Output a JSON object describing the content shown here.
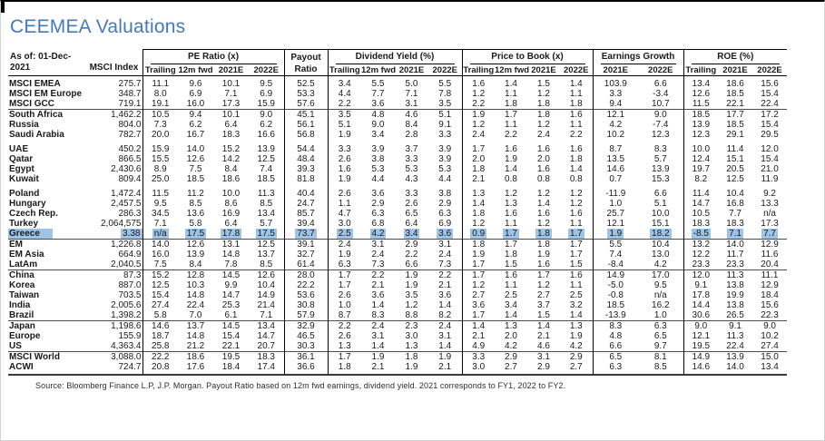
{
  "title": "CEEMEA Valuations",
  "colors": {
    "title_blue": "#4679b8",
    "row_highlight": "#9dc3e6"
  },
  "table": {
    "corner": {
      "as_of_line1": "As of: 01-Dec-",
      "as_of_line2": "2021",
      "index_header": "MSCI Index"
    },
    "groups": [
      {
        "label": "PE Ratio (x)",
        "cols": [
          "Trailing",
          "12m fwd",
          "2021E",
          "2022E"
        ]
      },
      {
        "label_lines": [
          "Payout",
          "Ratio"
        ]
      },
      {
        "label": "Dividend Yield (%)",
        "cols": [
          "Trailing",
          "12m fwd",
          "2021E",
          "2022E"
        ]
      },
      {
        "label": "Price to Book (x)",
        "cols": [
          "Trailing",
          "12m fwd",
          "2021E",
          "2022E"
        ]
      },
      {
        "label": "Earnings Growth",
        "cols": [
          "2021E",
          "2022E"
        ]
      },
      {
        "label": "ROE (%)",
        "cols": [
          "Trailing",
          "2021E",
          "2022E"
        ]
      }
    ],
    "rows": [
      {
        "name": "MSCI EMEA",
        "index": "275.7",
        "values": [
          "11.1",
          "9.6",
          "10.1",
          "9.5",
          "52.5",
          "3.4",
          "5.5",
          "5.0",
          "5.5",
          "1.6",
          "1.4",
          "1.5",
          "1.4",
          "103.9",
          "6.6",
          "13.4",
          "18.6",
          "15.6"
        ]
      },
      {
        "name": "MSCI EM Europe",
        "index": "348.7",
        "values": [
          "8.0",
          "6.9",
          "7.1",
          "6.9",
          "53.3",
          "4.4",
          "7.7",
          "7.1",
          "7.8",
          "1.2",
          "1.1",
          "1.2",
          "1.1",
          "3.3",
          "-3.4",
          "12.6",
          "18.5",
          "15.4"
        ]
      },
      {
        "name": "MSCI GCC",
        "index": "719.1",
        "values": [
          "19.1",
          "16.0",
          "17.3",
          "15.9",
          "57.6",
          "2.2",
          "3.6",
          "3.1",
          "3.5",
          "2.2",
          "1.8",
          "1.8",
          "1.8",
          "9.4",
          "10.7",
          "11.5",
          "22.1",
          "22.4"
        ]
      },
      {
        "name": "South Africa",
        "index": "1,462.2",
        "rule_above": true,
        "values": [
          "10.5",
          "9.4",
          "10.1",
          "9.0",
          "45.1",
          "3.5",
          "4.8",
          "4.6",
          "5.1",
          "1.9",
          "1.7",
          "1.8",
          "1.6",
          "12.1",
          "9.0",
          "18.5",
          "17.7",
          "17.2"
        ]
      },
      {
        "name": "Russia",
        "index": "804.0",
        "values": [
          "7.3",
          "6.2",
          "6.4",
          "6.2",
          "56.1",
          "5.1",
          "9.0",
          "8.4",
          "9.1",
          "1.2",
          "1.1",
          "1.2",
          "1.1",
          "4.2",
          "-7.4",
          "13.9",
          "18.5",
          "15.4"
        ]
      },
      {
        "name": "Saudi Arabia",
        "index": "782.7",
        "values": [
          "20.0",
          "16.7",
          "18.3",
          "16.6",
          "56.8",
          "1.9",
          "3.4",
          "2.8",
          "3.3",
          "2.4",
          "2.2",
          "2.4",
          "2.2",
          "10.2",
          "12.3",
          "12.3",
          "29.1",
          "29.5"
        ]
      },
      {
        "name": "UAE",
        "index": "450.2",
        "gap_above": true,
        "values": [
          "15.9",
          "14.0",
          "15.2",
          "13.9",
          "54.4",
          "3.3",
          "3.9",
          "3.7",
          "3.9",
          "1.7",
          "1.6",
          "1.6",
          "1.6",
          "8.7",
          "8.3",
          "10.0",
          "11.4",
          "12.0"
        ]
      },
      {
        "name": "Qatar",
        "index": "866.5",
        "values": [
          "15.5",
          "12.6",
          "14.2",
          "12.5",
          "48.4",
          "2.6",
          "3.8",
          "3.3",
          "3.9",
          "2.0",
          "1.9",
          "2.0",
          "1.8",
          "13.5",
          "5.7",
          "12.4",
          "15.1",
          "15.4"
        ]
      },
      {
        "name": "Egypt",
        "index": "2,430.6",
        "values": [
          "8.9",
          "7.5",
          "8.4",
          "7.4",
          "39.3",
          "1.6",
          "5.3",
          "5.3",
          "5.3",
          "1.8",
          "1.4",
          "1.6",
          "1.4",
          "14.6",
          "13.9",
          "19.7",
          "20.5",
          "21.0"
        ]
      },
      {
        "name": "Kuwait",
        "index": "809.4",
        "values": [
          "25.0",
          "18.5",
          "18.6",
          "18.5",
          "81.8",
          "1.9",
          "4.4",
          "4.3",
          "4.4",
          "2.1",
          "0.8",
          "0.8",
          "0.8",
          "0.7",
          "15.3",
          "8.2",
          "12.5",
          "11.9"
        ]
      },
      {
        "name": "Poland",
        "index": "1,472.4",
        "gap_above": true,
        "values": [
          "11.5",
          "11.2",
          "10.0",
          "11.3",
          "40.4",
          "2.6",
          "3.6",
          "3.3",
          "3.8",
          "1.3",
          "1.2",
          "1.2",
          "1.2",
          "-11.9",
          "6.6",
          "11.4",
          "10.4",
          "9.2"
        ]
      },
      {
        "name": "Hungary",
        "index": "2,457.5",
        "values": [
          "9.5",
          "8.5",
          "8.6",
          "8.5",
          "24.7",
          "1.1",
          "2.9",
          "2.6",
          "2.9",
          "1.4",
          "1.3",
          "1.4",
          "1.2",
          "1.0",
          "5.1",
          "14.7",
          "16.8",
          "13.3"
        ]
      },
      {
        "name": "Czech Rep.",
        "index": "286.3",
        "values": [
          "34.5",
          "13.6",
          "16.9",
          "13.4",
          "85.7",
          "4.7",
          "6.3",
          "6.5",
          "6.3",
          "1.8",
          "1.6",
          "1.6",
          "1.6",
          "25.7",
          "10.0",
          "10.5",
          "7.7",
          "n/a"
        ]
      },
      {
        "name": "Turkey",
        "index": "2,064,575",
        "values": [
          "7.1",
          "5.8",
          "6.4",
          "5.7",
          "39.4",
          "3.0",
          "6.8",
          "6.4",
          "6.9",
          "1.2",
          "1.1",
          "1.2",
          "1.1",
          "12.1",
          "15.1",
          "18.3",
          "18.3",
          "17.3"
        ]
      },
      {
        "name": "Greece",
        "index": "3.38",
        "highlight": true,
        "values": [
          "n/a",
          "17.5",
          "17.8",
          "17.5",
          "73.7",
          "2.5",
          "4.2",
          "3.4",
          "3.6",
          "0.9",
          "1.7",
          "1.8",
          "1.7",
          "1.9",
          "18.2",
          "-8.5",
          "7.1",
          "7.7"
        ]
      },
      {
        "name": "EM",
        "index": "1,226.8",
        "rule_above": true,
        "values": [
          "14.0",
          "12.6",
          "13.1",
          "12.5",
          "39.1",
          "2.4",
          "3.1",
          "2.9",
          "3.1",
          "1.8",
          "1.7",
          "1.8",
          "1.7",
          "5.5",
          "10.4",
          "13.2",
          "14.0",
          "12.9"
        ]
      },
      {
        "name": "EM Asia",
        "index": "664.9",
        "values": [
          "16.0",
          "13.9",
          "14.8",
          "13.7",
          "32.7",
          "1.9",
          "2.4",
          "2.2",
          "2.4",
          "1.9",
          "1.8",
          "1.9",
          "1.7",
          "7.4",
          "13.0",
          "12.2",
          "11.7",
          "11.6"
        ]
      },
      {
        "name": "LatAm",
        "index": "2,040.5",
        "values": [
          "7.5",
          "8.4",
          "7.8",
          "8.5",
          "61.4",
          "6.3",
          "7.3",
          "6.6",
          "7.3",
          "1.7",
          "1.5",
          "1.6",
          "1.5",
          "-8.4",
          "4.2",
          "23.3",
          "23.3",
          "20.4"
        ]
      },
      {
        "name": "China",
        "index": "87.3",
        "rule_above": true,
        "values": [
          "15.2",
          "12.8",
          "14.5",
          "12.6",
          "28.0",
          "1.7",
          "2.2",
          "1.9",
          "2.2",
          "1.7",
          "1.6",
          "1.7",
          "1.6",
          "14.9",
          "17.0",
          "12.0",
          "11.3",
          "11.1"
        ]
      },
      {
        "name": "Korea",
        "index": "887.0",
        "values": [
          "12.5",
          "10.3",
          "9.9",
          "10.4",
          "22.2",
          "1.7",
          "2.1",
          "1.9",
          "2.1",
          "1.2",
          "1.1",
          "1.2",
          "1.1",
          "-5.0",
          "9.5",
          "9.1",
          "13.8",
          "12.9"
        ]
      },
      {
        "name": "Taiwan",
        "index": "703.5",
        "values": [
          "15.4",
          "14.8",
          "14.7",
          "14.9",
          "53.6",
          "2.6",
          "3.6",
          "3.5",
          "3.6",
          "2.7",
          "2.5",
          "2.7",
          "2.5",
          "-0.8",
          "n/a",
          "17.8",
          "19.9",
          "18.4"
        ]
      },
      {
        "name": "India",
        "index": "2,005.6",
        "values": [
          "27.4",
          "22.4",
          "25.3",
          "21.4",
          "30.8",
          "1.0",
          "1.4",
          "1.2",
          "1.4",
          "3.6",
          "3.4",
          "3.7",
          "3.2",
          "18.5",
          "16.2",
          "14.4",
          "13.8",
          "15.6"
        ]
      },
      {
        "name": "Brazil",
        "index": "1,398.2",
        "values": [
          "5.8",
          "7.0",
          "6.1",
          "7.1",
          "57.9",
          "8.7",
          "8.3",
          "8.8",
          "8.2",
          "1.7",
          "1.4",
          "1.5",
          "1.4",
          "-13.9",
          "1.0",
          "30.6",
          "26.5",
          "22.3"
        ]
      },
      {
        "name": "Japan",
        "index": "1,198.6",
        "rule_above": true,
        "values": [
          "14.6",
          "13.7",
          "14.5",
          "13.4",
          "32.9",
          "2.2",
          "2.4",
          "2.3",
          "2.4",
          "1.4",
          "1.3",
          "1.4",
          "1.3",
          "8.3",
          "6.3",
          "9.0",
          "9.1",
          "9.0"
        ]
      },
      {
        "name": "Europe",
        "index": "155.9",
        "values": [
          "18.7",
          "14.8",
          "15.4",
          "14.7",
          "46.5",
          "2.6",
          "3.1",
          "3.0",
          "3.1",
          "2.1",
          "2.0",
          "2.1",
          "1.9",
          "4.8",
          "6.5",
          "12.1",
          "11.3",
          "10.2"
        ]
      },
      {
        "name": "US",
        "index": "4,363.4",
        "values": [
          "25.8",
          "21.2",
          "22.1",
          "20.7",
          "30.3",
          "1.3",
          "1.4",
          "1.3",
          "1.4",
          "4.9",
          "4.2",
          "4.6",
          "4.2",
          "6.6",
          "9.7",
          "19.5",
          "22.4",
          "27.4"
        ]
      },
      {
        "name": "MSCI World",
        "index": "3,088.0",
        "rule_above": true,
        "values": [
          "22.2",
          "18.6",
          "19.5",
          "18.3",
          "36.1",
          "1.7",
          "1.9",
          "1.8",
          "1.9",
          "3.3",
          "2.9",
          "3.1",
          "2.9",
          "6.5",
          "8.1",
          "14.9",
          "13.9",
          "15.0"
        ]
      },
      {
        "name": "ACWI",
        "index": "724.7",
        "values": [
          "20.8",
          "17.6",
          "18.4",
          "17.4",
          "36.6",
          "1.8",
          "2.1",
          "1.9",
          "2.1",
          "3.0",
          "2.7",
          "2.9",
          "2.7",
          "6.3",
          "8.5",
          "14.6",
          "14.0",
          "13.4"
        ]
      }
    ]
  },
  "footer": {
    "source": "Source: Bloomberg Finance L.P, J.P. Morgan. Payout Ratio based on 12m fwd earnings, dividend yield. 2021 corresponds to FY1, 2022 to FY2."
  }
}
